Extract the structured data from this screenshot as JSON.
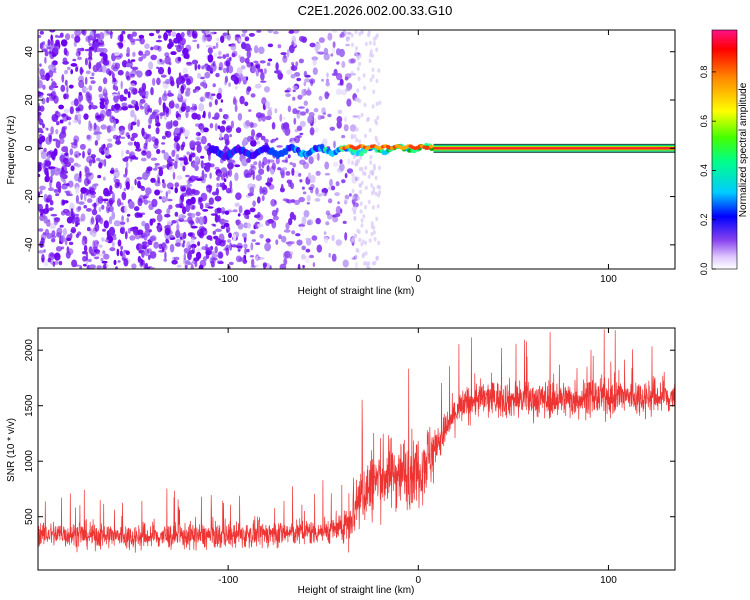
{
  "figure": {
    "title": "C2E1.2026.002.00.33.G10"
  },
  "chart_data": [
    {
      "type": "heatmap",
      "name": "spectrogram",
      "xlabel": "Height of straight line (km)",
      "ylabel": "Frequency (Hz)",
      "xlim": [
        -200,
        135
      ],
      "ylim": [
        -50,
        49
      ],
      "xticks": [
        -100,
        0,
        100
      ],
      "yticks": [
        -40,
        -20,
        0,
        20,
        40
      ],
      "colorbar": {
        "label": "Normalized spectral amplitude",
        "range": [
          0,
          0.97
        ],
        "ticks": [
          0.0,
          0.2,
          0.4,
          0.6,
          0.8
        ]
      },
      "features": {
        "scatter_noise_region_km": [
          -200,
          -35
        ],
        "sparse_noise_region_km": [
          -35,
          -20
        ],
        "converging_signal_start_km": -110,
        "carrier_line_start_km": 8,
        "carrier_line_frequency_hz": 0
      }
    },
    {
      "type": "line",
      "name": "snr",
      "xlabel": "Height of straight line (km)",
      "ylabel": "SNR (10 * v/v)",
      "xlim": [
        -200,
        135
      ],
      "ylim": [
        20,
        2200
      ],
      "xticks": [
        -100,
        0,
        100
      ],
      "yticks": [
        500,
        1000,
        1500,
        2000
      ],
      "color": "#ee3333",
      "trend": [
        {
          "x": -200,
          "y": 350
        },
        {
          "x": -150,
          "y": 320
        },
        {
          "x": -100,
          "y": 330
        },
        {
          "x": -60,
          "y": 360
        },
        {
          "x": -40,
          "y": 390
        },
        {
          "x": -30,
          "y": 700
        },
        {
          "x": -20,
          "y": 860
        },
        {
          "x": -10,
          "y": 900
        },
        {
          "x": 0,
          "y": 920
        },
        {
          "x": 10,
          "y": 1150
        },
        {
          "x": 20,
          "y": 1450
        },
        {
          "x": 30,
          "y": 1560
        },
        {
          "x": 50,
          "y": 1560
        },
        {
          "x": 80,
          "y": 1560
        },
        {
          "x": 100,
          "y": 1580
        },
        {
          "x": 135,
          "y": 1580
        }
      ]
    }
  ]
}
